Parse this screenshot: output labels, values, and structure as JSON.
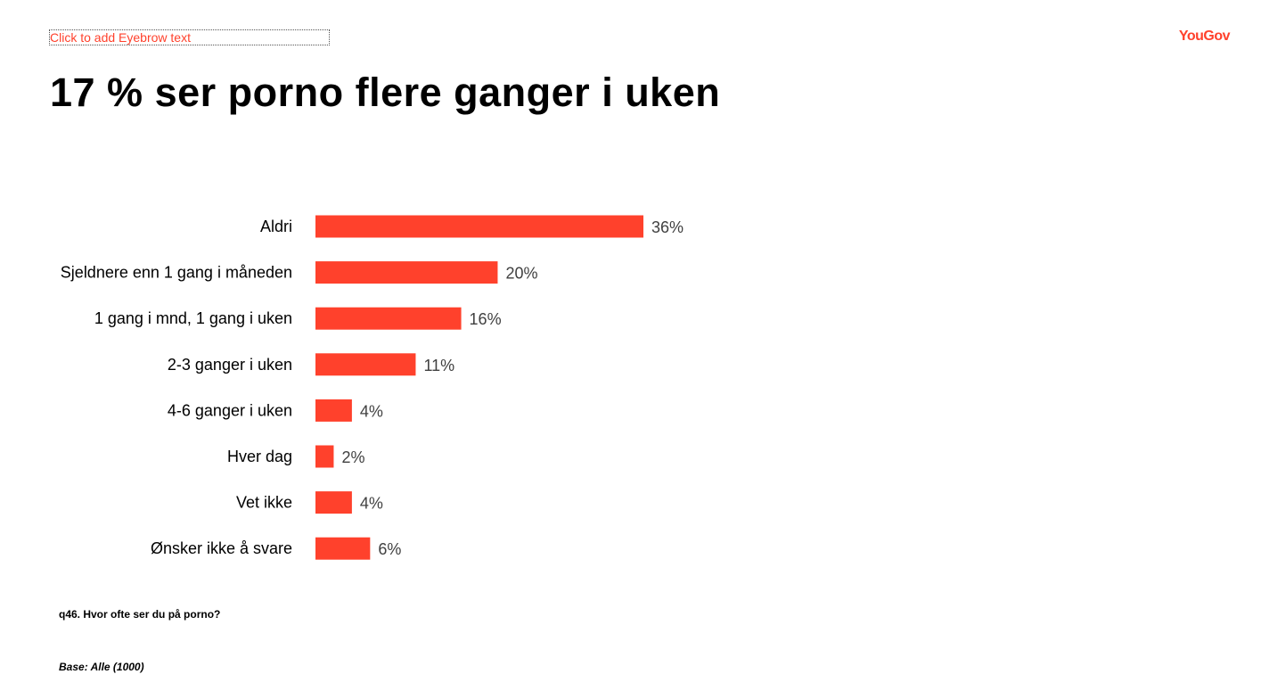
{
  "eyebrow": "Click to add Eyebrow text",
  "logo": "YouGov",
  "title": "17 % ser porno flere ganger i uken",
  "question": "q46. Hvor ofte ser du på porno?",
  "base": "Base: Alle (1000)",
  "colors": {
    "bar": "#ff412c",
    "label": "#000000",
    "value": "#404040"
  },
  "chart_data": {
    "type": "bar",
    "orientation": "horizontal",
    "categories": [
      "Aldri",
      "Sjeldnere enn 1 gang i måneden",
      "1 gang i mnd, 1 gang i uken",
      "2-3 ganger i uken",
      "4-6 ganger i uken",
      "Hver dag",
      "Vet ikke",
      "Ønsker ikke å svare"
    ],
    "values": [
      36,
      20,
      16,
      11,
      4,
      2,
      4,
      6
    ],
    "value_labels": [
      "36%",
      "20%",
      "16%",
      "11%",
      "4%",
      "2%",
      "4%",
      "6%"
    ],
    "grid": false,
    "unit": "%"
  }
}
